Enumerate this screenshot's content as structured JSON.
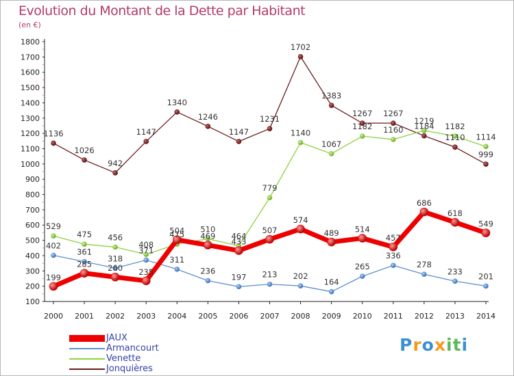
{
  "header": {
    "title": "Evolution du Montant de la Dette par Habitant",
    "subtitle": "(en €)"
  },
  "logo": {
    "letters": [
      "P",
      "r",
      "o",
      "x",
      "i",
      "t",
      "i"
    ],
    "colors": [
      "#3a8fd6",
      "#f29a1a",
      "#3a8fd6",
      "#f29a1a",
      "#5cb85c",
      "#5cb85c",
      "#3a8fd6"
    ]
  },
  "chart_data": {
    "type": "line",
    "title": "Evolution du Montant de la Dette par Habitant",
    "subtitle": "(en €)",
    "xlabel": "",
    "ylabel": "",
    "categories": [
      "2000",
      "2001",
      "2002",
      "2003",
      "2004",
      "2005",
      "2006",
      "2007",
      "2008",
      "2009",
      "2010",
      "2011",
      "2012",
      "2013",
      "2014"
    ],
    "ylim": [
      100,
      1800
    ],
    "yticks": [
      100,
      200,
      300,
      400,
      500,
      600,
      700,
      800,
      900,
      1000,
      1100,
      1200,
      1300,
      1400,
      1500,
      1600,
      1700,
      1800
    ],
    "grid": false,
    "legend_position": "bottom-left",
    "series": [
      {
        "name": "Jonquières",
        "color": "#6b1a1a",
        "values": [
          1136,
          1026,
          942,
          1147,
          1340,
          1246,
          1147,
          1231,
          1702,
          1383,
          1267,
          1267,
          1184,
          1110,
          999
        ]
      },
      {
        "name": "Venette",
        "color": "#8cd13e",
        "values": [
          529,
          475,
          456,
          408,
          475,
          510,
          464,
          779,
          1140,
          1067,
          1182,
          1160,
          1219,
          1182,
          1114
        ]
      },
      {
        "name": "Armancourt",
        "color": "#5d8fd0",
        "values": [
          402,
          361,
          318,
          371,
          311,
          236,
          197,
          213,
          202,
          164,
          265,
          336,
          278,
          233,
          201
        ]
      },
      {
        "name": "JAUX",
        "color": "#ee0000",
        "values": [
          199,
          285,
          260,
          235,
          504,
          469,
          433,
          507,
          574,
          489,
          514,
          457,
          686,
          618,
          549
        ]
      }
    ]
  }
}
